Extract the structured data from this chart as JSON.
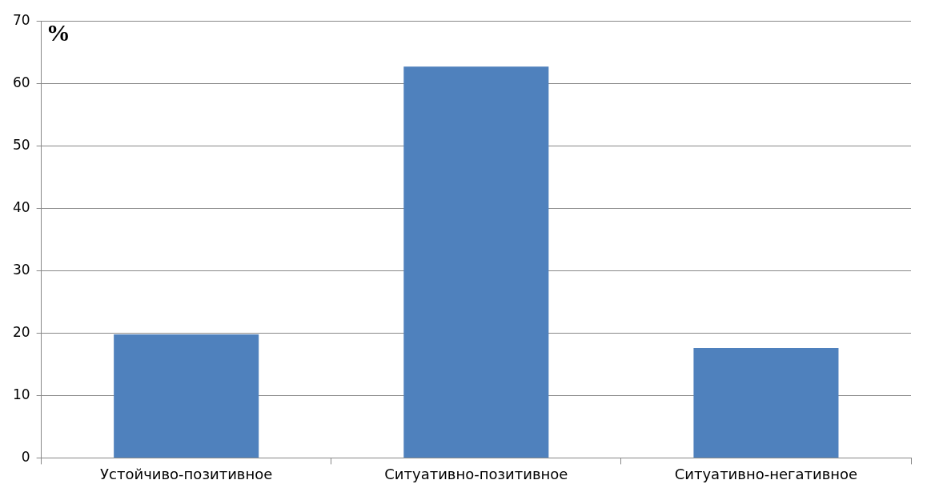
{
  "chart_data": {
    "type": "bar",
    "ylabel": "%",
    "categories": [
      "Устойчиво-позитивное",
      "Ситуативно-позитивное",
      "Ситуативно-негативное"
    ],
    "values": [
      19.8,
      62.7,
      17.6
    ],
    "color": "#4f81bd",
    "ylim": [
      0,
      70
    ],
    "yticks": [
      0,
      10,
      20,
      30,
      40,
      50,
      60,
      70
    ],
    "grid": "y",
    "legend": false
  }
}
